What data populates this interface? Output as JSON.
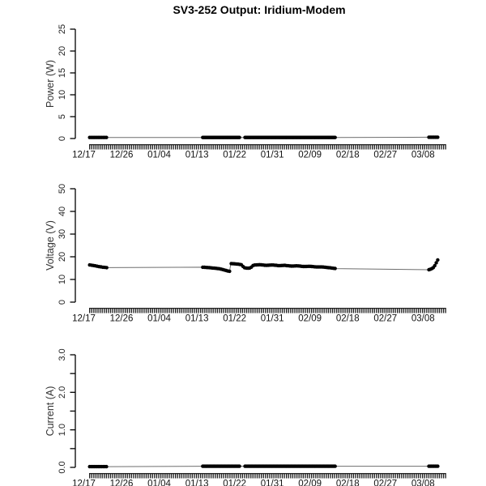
{
  "title": "SV3-252 Output: Iridium-Modem",
  "colors": {
    "point": "#000000",
    "line": "#6e6e6e",
    "axis": "#000000",
    "tick_text": "#222222",
    "axis_label_text": "#333333",
    "rug": "#222222"
  },
  "x_axis": {
    "tick_labels": [
      "12/17",
      "12/26",
      "01/04",
      "01/13",
      "01/22",
      "01/31",
      "02/09",
      "02/18",
      "02/27",
      "03/08"
    ],
    "tick_days": [
      0,
      9,
      18,
      27,
      36,
      45,
      54,
      63,
      72,
      81
    ],
    "rug_range_days": [
      1.26,
      86.4
    ],
    "rug_tick_step_days": 0.5
  },
  "chart_data": [
    {
      "type": "scatter-line",
      "panel": "power",
      "ylabel": "Power (W)",
      "ylim": [
        0,
        25
      ],
      "yticks": [
        0,
        5,
        10,
        15,
        20,
        25
      ],
      "ytick_labels": [
        "0",
        "5",
        "10",
        "15",
        "20",
        "25"
      ],
      "minor_yticks": [],
      "grid": false,
      "segments": [
        {
          "range_days": [
            1.4,
            5.6
          ],
          "dot_spacing_days": 0.4,
          "keypoints": [
            [
              1.4,
              0.25
            ],
            [
              5.6,
              0.25
            ]
          ]
        },
        {
          "range_days": [
            28.4,
            37.2
          ],
          "dot_spacing_days": 0.25,
          "keypoints": [
            [
              28.4,
              0.25
            ],
            [
              37.2,
              0.25
            ]
          ]
        },
        {
          "range_days": [
            38.5,
            60.2
          ],
          "dot_spacing_days": 0.25,
          "keypoints": [
            [
              38.5,
              0.25
            ],
            [
              60.2,
              0.25
            ]
          ]
        },
        {
          "range_days": [
            82.4,
            84.7
          ],
          "dot_spacing_days": 0.3,
          "keypoints": [
            [
              82.4,
              0.3
            ],
            [
              84.7,
              0.3
            ]
          ]
        }
      ]
    },
    {
      "type": "scatter-line",
      "panel": "voltage",
      "ylabel": "Voltage (V)",
      "ylim": [
        0,
        50
      ],
      "yticks": [
        0,
        10,
        20,
        30,
        40,
        50
      ],
      "ytick_labels": [
        "0",
        "10",
        "20",
        "30",
        "40",
        "50"
      ],
      "minor_yticks": [],
      "grid": false,
      "segments": [
        {
          "range_days": [
            1.4,
            5.6
          ],
          "dot_spacing_days": 0.45,
          "keypoints": [
            [
              1.4,
              16.4
            ],
            [
              2.5,
              16.1
            ],
            [
              3.5,
              15.7
            ],
            [
              4.5,
              15.4
            ],
            [
              5.6,
              15.2
            ]
          ]
        },
        {
          "range_days": [
            28.4,
            60.2
          ],
          "dot_spacing_days": 0.4,
          "keypoints": [
            [
              28.4,
              15.4
            ],
            [
              30,
              15.2
            ],
            [
              31.5,
              14.9
            ],
            [
              32.5,
              14.7
            ],
            [
              33.5,
              14.2
            ],
            [
              34.4,
              13.7
            ],
            [
              34.8,
              13.6
            ],
            [
              35.1,
              17.0
            ],
            [
              36,
              16.9
            ],
            [
              37,
              16.7
            ],
            [
              37.6,
              16.5
            ],
            [
              38.3,
              15.2
            ],
            [
              39,
              14.9
            ],
            [
              39.8,
              15.1
            ],
            [
              40.5,
              16.3
            ],
            [
              42,
              16.5
            ],
            [
              43.5,
              16.2
            ],
            [
              45,
              16.4
            ],
            [
              46.5,
              16.1
            ],
            [
              48,
              16.2
            ],
            [
              49.5,
              15.9
            ],
            [
              51,
              16.0
            ],
            [
              52.5,
              15.7
            ],
            [
              54,
              15.8
            ],
            [
              55.5,
              15.5
            ],
            [
              57,
              15.5
            ],
            [
              58.5,
              15.2
            ],
            [
              60.2,
              14.8
            ]
          ]
        },
        {
          "range_days": [
            82.4,
            84.7
          ],
          "dot_spacing_days": 0.35,
          "keypoints": [
            [
              82.4,
              14.3
            ],
            [
              82.9,
              14.6
            ],
            [
              83.4,
              15.1
            ],
            [
              83.9,
              16.3
            ],
            [
              84.3,
              18.0
            ],
            [
              84.7,
              19.2
            ]
          ]
        }
      ]
    },
    {
      "type": "scatter-line",
      "panel": "current",
      "ylabel": "Current (A)",
      "ylim": [
        0,
        3
      ],
      "yticks": [
        0,
        1,
        2,
        3
      ],
      "ytick_labels": [
        "0.0",
        "1.0",
        "2.0",
        "3.0"
      ],
      "minor_yticks": [
        0.5,
        1.5,
        2.5
      ],
      "grid": false,
      "segments": [
        {
          "range_days": [
            1.4,
            5.6
          ],
          "dot_spacing_days": 0.4,
          "keypoints": [
            [
              1.4,
              0.02
            ],
            [
              5.6,
              0.02
            ]
          ]
        },
        {
          "range_days": [
            28.4,
            37.2
          ],
          "dot_spacing_days": 0.25,
          "keypoints": [
            [
              28.4,
              0.03
            ],
            [
              37.2,
              0.03
            ]
          ]
        },
        {
          "range_days": [
            38.5,
            60.2
          ],
          "dot_spacing_days": 0.25,
          "keypoints": [
            [
              38.5,
              0.03
            ],
            [
              60.2,
              0.03
            ]
          ]
        },
        {
          "range_days": [
            82.4,
            84.7
          ],
          "dot_spacing_days": 0.3,
          "keypoints": [
            [
              82.4,
              0.03
            ],
            [
              84.7,
              0.03
            ]
          ]
        }
      ]
    }
  ]
}
